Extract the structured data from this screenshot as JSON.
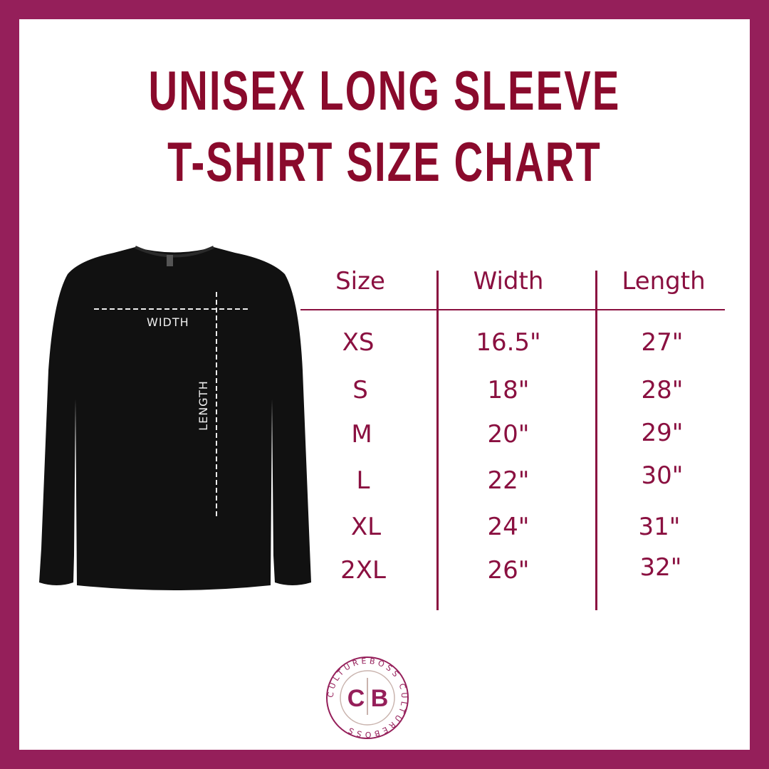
{
  "title": {
    "line1": "UNISEX LONG SLEEVE",
    "line2": "T-SHIRT SIZE CHART"
  },
  "colors": {
    "border": "#951f5a",
    "title": "#8a0a2c",
    "table": "#8a1040",
    "shirt": "#111111"
  },
  "diagram": {
    "width_label": "WIDTH",
    "length_label": "LENGTH"
  },
  "table": {
    "headers": [
      "Size",
      "Width",
      "Length"
    ],
    "rows": [
      {
        "size": "XS",
        "width": "16.5\"",
        "length": "27\""
      },
      {
        "size": "S",
        "width": "18\"",
        "length": "28\""
      },
      {
        "size": "M",
        "width": "20\"",
        "length": "29\""
      },
      {
        "size": "L",
        "width": "22\"",
        "length": "30\""
      },
      {
        "size": "XL",
        "width": "24\"",
        "length": "31\""
      },
      {
        "size": "2XL",
        "width": "26\"",
        "length": "32\""
      }
    ]
  },
  "logo": {
    "monogram_left": "C",
    "monogram_right": "B",
    "ring_text": "CULTUREBOSS"
  }
}
